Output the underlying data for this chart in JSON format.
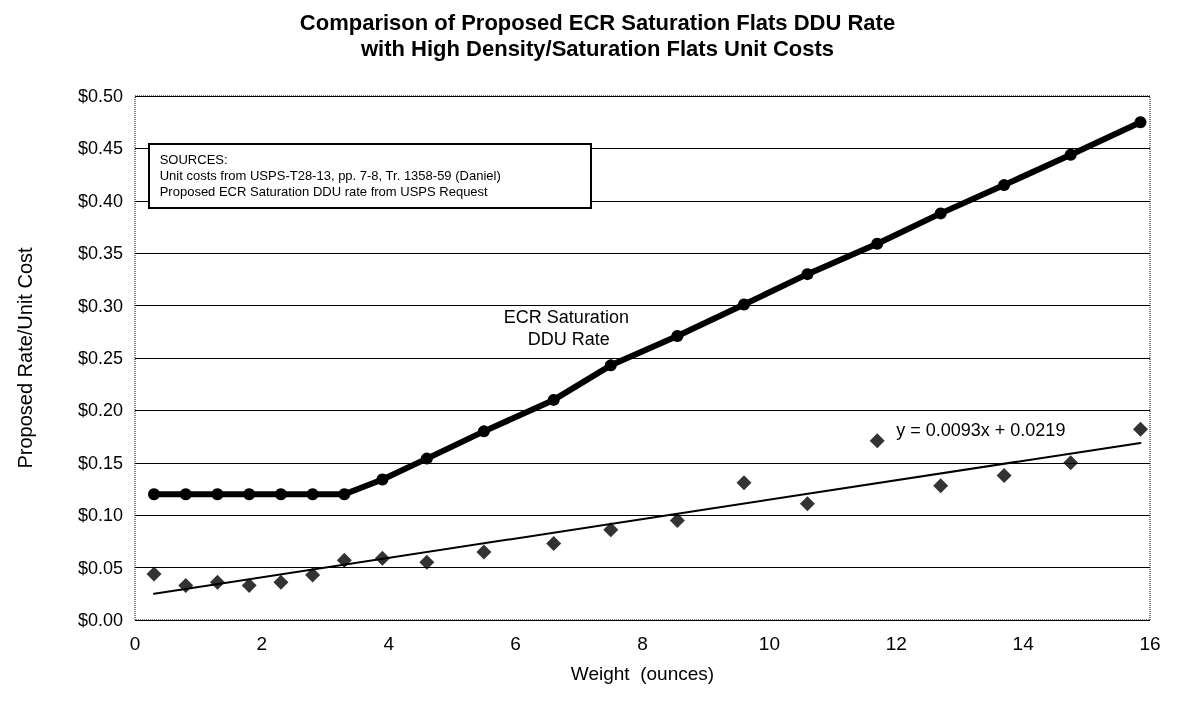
{
  "chart_data": {
    "type": "line",
    "title": "Comparison of Proposed ECR Saturation Flats DDU Rate\nwith High Density/Saturation Flats Unit Costs",
    "xlabel": "Weight  (ounces)",
    "ylabel": "Proposed Rate/Unit Cost",
    "series": [
      {
        "name": "ECR Saturation DDU Rate",
        "marker": "circle",
        "color": "#000000",
        "x": [
          0.3,
          0.8,
          1.3,
          1.8,
          2.3,
          2.8,
          3.3,
          3.9,
          4.6,
          5.5,
          6.6,
          7.5,
          8.55,
          9.6,
          10.6,
          11.7,
          12.7,
          13.7,
          14.75,
          15.85
        ],
        "values": [
          0.12,
          0.12,
          0.12,
          0.12,
          0.12,
          0.12,
          0.12,
          0.134,
          0.154,
          0.18,
          0.21,
          0.243,
          0.271,
          0.301,
          0.33,
          0.359,
          0.388,
          0.415,
          0.444,
          0.475
        ]
      },
      {
        "type": "scatter",
        "marker": "diamond",
        "color": "#000000",
        "x": [
          0.3,
          0.8,
          1.3,
          1.8,
          2.3,
          2.8,
          3.3,
          3.9,
          4.6,
          5.5,
          6.6,
          7.5,
          8.55,
          9.6,
          10.6,
          11.7,
          12.7,
          13.7,
          14.75,
          15.85
        ],
        "values": [
          0.044,
          0.033,
          0.036,
          0.033,
          0.036,
          0.043,
          0.057,
          0.059,
          0.055,
          0.065,
          0.073,
          0.086,
          0.095,
          0.131,
          0.111,
          0.171,
          0.128,
          0.138,
          0.15,
          0.182
        ]
      },
      {
        "type": "line",
        "marker": "none",
        "color": "#000000",
        "x": [
          0.3,
          15.85
        ],
        "values": [
          0.025,
          0.169
        ]
      }
    ],
    "annotations": [
      "SOURCES:",
      "Unit costs from USPS-T28-13, pp. 7-8, Tr. 1358-59 (Daniel)",
      "Proposed ECR Saturation DDU rate from USPS Request",
      "y = 0.0093x + 0.0219"
    ],
    "xlim": [
      0,
      16
    ],
    "xticks": [
      0,
      2,
      4,
      6,
      8,
      10,
      12,
      14,
      16
    ],
    "ylim": [
      0,
      0.5
    ],
    "yticks": [
      {
        "value": 0,
        "label": "$0.00"
      },
      {
        "value": 0.05,
        "label": "$0.05"
      },
      {
        "value": 0.1,
        "label": "$0.10"
      },
      {
        "value": 0.15,
        "label": "$0.15"
      },
      {
        "value": 0.2,
        "label": "$0.20"
      },
      {
        "value": 0.25,
        "label": "$0.25"
      },
      {
        "value": 0.3,
        "label": "$0.30"
      },
      {
        "value": 0.35,
        "label": "$0.35"
      },
      {
        "value": 0.4,
        "label": "$0.40"
      },
      {
        "value": 0.45,
        "label": "$0.45"
      },
      {
        "value": 0.5,
        "label": "$0.50"
      }
    ],
    "grid": "y",
    "legend": false
  }
}
